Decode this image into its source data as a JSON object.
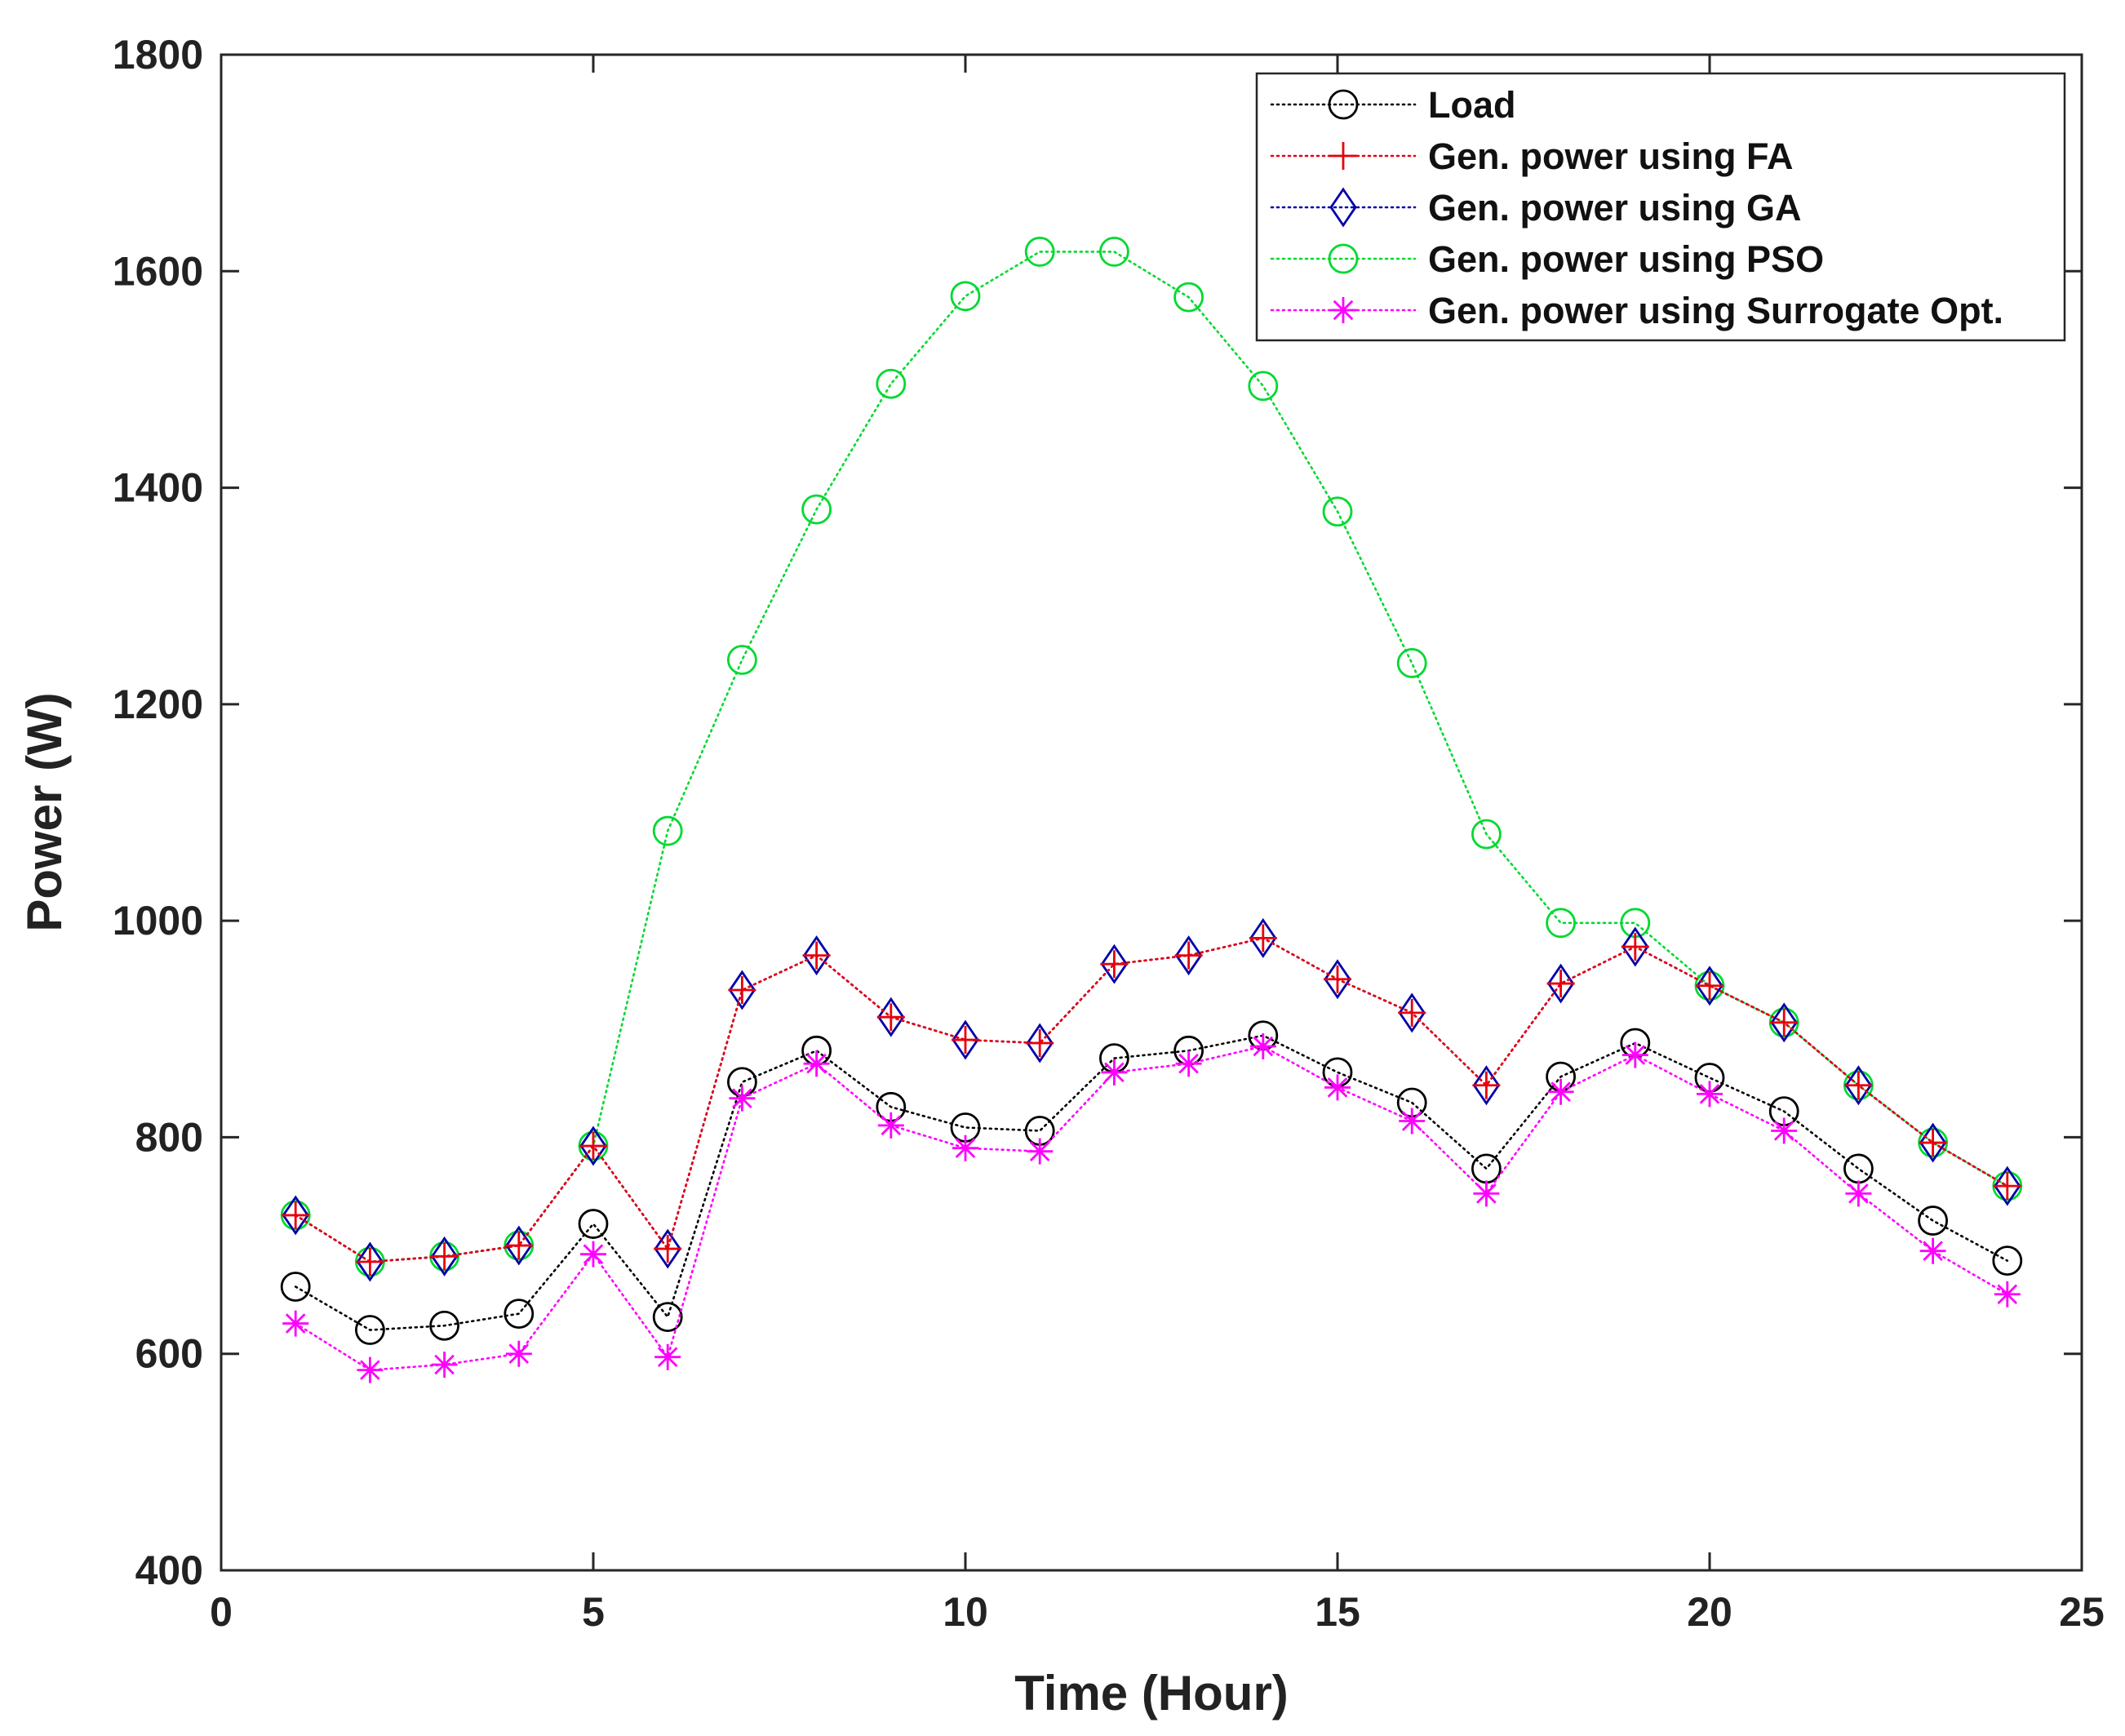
{
  "chart_data": {
    "type": "line",
    "title": "",
    "xlabel": "Time (Hour)",
    "ylabel": "Power (W)",
    "xlim": [
      0,
      25
    ],
    "ylim": [
      400,
      1800
    ],
    "xticks": [
      0,
      5,
      10,
      15,
      20,
      25
    ],
    "yticks": [
      400,
      600,
      800,
      1000,
      1200,
      1400,
      1600,
      1800
    ],
    "grid": false,
    "legend_position": "top-right",
    "x": [
      1,
      2,
      3,
      4,
      5,
      6,
      7,
      8,
      9,
      10,
      11,
      12,
      13,
      14,
      15,
      16,
      17,
      18,
      19,
      20,
      21,
      22,
      23,
      24
    ],
    "series": [
      {
        "name": "Load",
        "color": "#000000",
        "marker": "circle-icon",
        "values": [
          662,
          622,
          626,
          637,
          720,
          634,
          851,
          880,
          828,
          809,
          806,
          873,
          880,
          894,
          860,
          832,
          771,
          856,
          887,
          855,
          824,
          771,
          723,
          686
        ]
      },
      {
        "name": "Gen. power using FA",
        "color": "#e8000b",
        "marker": "plus-icon",
        "values": [
          728,
          685,
          690,
          700,
          792,
          697,
          936,
          968,
          911,
          890,
          887,
          960,
          968,
          984,
          946,
          915,
          848,
          942,
          976,
          940,
          906,
          848,
          795,
          755
        ]
      },
      {
        "name": "Gen. power using GA",
        "color": "#0000a8",
        "marker": "diamond-icon",
        "values": [
          728,
          685,
          690,
          700,
          792,
          697,
          936,
          968,
          911,
          890,
          887,
          960,
          968,
          984,
          946,
          915,
          848,
          942,
          976,
          940,
          906,
          848,
          795,
          755
        ]
      },
      {
        "name": "Gen. power using PSO",
        "color": "#00d930",
        "marker": "circle-icon",
        "values": [
          728,
          685,
          690,
          700,
          792,
          1083,
          1241,
          1380,
          1496,
          1577,
          1618,
          1618,
          1576,
          1494,
          1378,
          1238,
          1080,
          998,
          998,
          940,
          906,
          848,
          795,
          755
        ]
      },
      {
        "name": "Gen. power using Surrogate Opt.",
        "color": "#ff00ff",
        "marker": "asterisk-icon",
        "values": [
          628,
          585,
          590,
          600,
          692,
          597,
          836,
          868,
          811,
          790,
          787,
          860,
          868,
          884,
          846,
          815,
          748,
          842,
          876,
          840,
          806,
          748,
          695,
          655
        ]
      }
    ]
  }
}
